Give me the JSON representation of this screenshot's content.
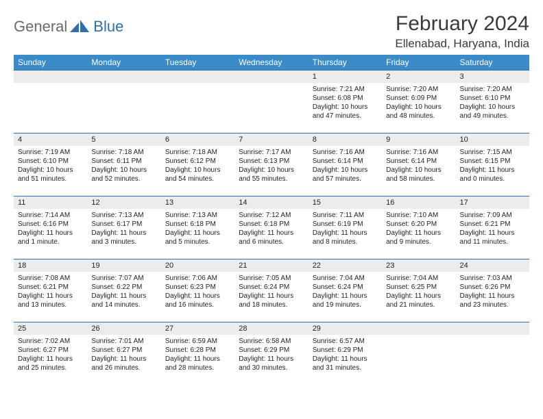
{
  "brand": {
    "part1": "General",
    "part2": "Blue"
  },
  "title": {
    "month": "February 2024",
    "location": "Ellenabad, Haryana, India"
  },
  "colors": {
    "header_bg": "#3b8bc9",
    "header_fg": "#ffffff",
    "daybar_bg": "#ececec",
    "border": "#2f6fab",
    "text": "#222222",
    "logo_gray": "#6a6a6a",
    "logo_blue": "#2f6fab"
  },
  "weekdays": [
    "Sunday",
    "Monday",
    "Tuesday",
    "Wednesday",
    "Thursday",
    "Friday",
    "Saturday"
  ],
  "days": [
    {
      "n": "1",
      "sunrise": "7:21 AM",
      "sunset": "6:08 PM",
      "daylight": "10 hours and 47 minutes."
    },
    {
      "n": "2",
      "sunrise": "7:20 AM",
      "sunset": "6:09 PM",
      "daylight": "10 hours and 48 minutes."
    },
    {
      "n": "3",
      "sunrise": "7:20 AM",
      "sunset": "6:10 PM",
      "daylight": "10 hours and 49 minutes."
    },
    {
      "n": "4",
      "sunrise": "7:19 AM",
      "sunset": "6:10 PM",
      "daylight": "10 hours and 51 minutes."
    },
    {
      "n": "5",
      "sunrise": "7:18 AM",
      "sunset": "6:11 PM",
      "daylight": "10 hours and 52 minutes."
    },
    {
      "n": "6",
      "sunrise": "7:18 AM",
      "sunset": "6:12 PM",
      "daylight": "10 hours and 54 minutes."
    },
    {
      "n": "7",
      "sunrise": "7:17 AM",
      "sunset": "6:13 PM",
      "daylight": "10 hours and 55 minutes."
    },
    {
      "n": "8",
      "sunrise": "7:16 AM",
      "sunset": "6:14 PM",
      "daylight": "10 hours and 57 minutes."
    },
    {
      "n": "9",
      "sunrise": "7:16 AM",
      "sunset": "6:14 PM",
      "daylight": "10 hours and 58 minutes."
    },
    {
      "n": "10",
      "sunrise": "7:15 AM",
      "sunset": "6:15 PM",
      "daylight": "11 hours and 0 minutes."
    },
    {
      "n": "11",
      "sunrise": "7:14 AM",
      "sunset": "6:16 PM",
      "daylight": "11 hours and 1 minute."
    },
    {
      "n": "12",
      "sunrise": "7:13 AM",
      "sunset": "6:17 PM",
      "daylight": "11 hours and 3 minutes."
    },
    {
      "n": "13",
      "sunrise": "7:13 AM",
      "sunset": "6:18 PM",
      "daylight": "11 hours and 5 minutes."
    },
    {
      "n": "14",
      "sunrise": "7:12 AM",
      "sunset": "6:18 PM",
      "daylight": "11 hours and 6 minutes."
    },
    {
      "n": "15",
      "sunrise": "7:11 AM",
      "sunset": "6:19 PM",
      "daylight": "11 hours and 8 minutes."
    },
    {
      "n": "16",
      "sunrise": "7:10 AM",
      "sunset": "6:20 PM",
      "daylight": "11 hours and 9 minutes."
    },
    {
      "n": "17",
      "sunrise": "7:09 AM",
      "sunset": "6:21 PM",
      "daylight": "11 hours and 11 minutes."
    },
    {
      "n": "18",
      "sunrise": "7:08 AM",
      "sunset": "6:21 PM",
      "daylight": "11 hours and 13 minutes."
    },
    {
      "n": "19",
      "sunrise": "7:07 AM",
      "sunset": "6:22 PM",
      "daylight": "11 hours and 14 minutes."
    },
    {
      "n": "20",
      "sunrise": "7:06 AM",
      "sunset": "6:23 PM",
      "daylight": "11 hours and 16 minutes."
    },
    {
      "n": "21",
      "sunrise": "7:05 AM",
      "sunset": "6:24 PM",
      "daylight": "11 hours and 18 minutes."
    },
    {
      "n": "22",
      "sunrise": "7:04 AM",
      "sunset": "6:24 PM",
      "daylight": "11 hours and 19 minutes."
    },
    {
      "n": "23",
      "sunrise": "7:04 AM",
      "sunset": "6:25 PM",
      "daylight": "11 hours and 21 minutes."
    },
    {
      "n": "24",
      "sunrise": "7:03 AM",
      "sunset": "6:26 PM",
      "daylight": "11 hours and 23 minutes."
    },
    {
      "n": "25",
      "sunrise": "7:02 AM",
      "sunset": "6:27 PM",
      "daylight": "11 hours and 25 minutes."
    },
    {
      "n": "26",
      "sunrise": "7:01 AM",
      "sunset": "6:27 PM",
      "daylight": "11 hours and 26 minutes."
    },
    {
      "n": "27",
      "sunrise": "6:59 AM",
      "sunset": "6:28 PM",
      "daylight": "11 hours and 28 minutes."
    },
    {
      "n": "28",
      "sunrise": "6:58 AM",
      "sunset": "6:29 PM",
      "daylight": "11 hours and 30 minutes."
    },
    {
      "n": "29",
      "sunrise": "6:57 AM",
      "sunset": "6:29 PM",
      "daylight": "11 hours and 31 minutes."
    }
  ],
  "labels": {
    "sunrise": "Sunrise: ",
    "sunset": "Sunset: ",
    "daylight": "Daylight: "
  },
  "layout": {
    "leading_blanks": 4,
    "trailing_blanks": 2
  }
}
